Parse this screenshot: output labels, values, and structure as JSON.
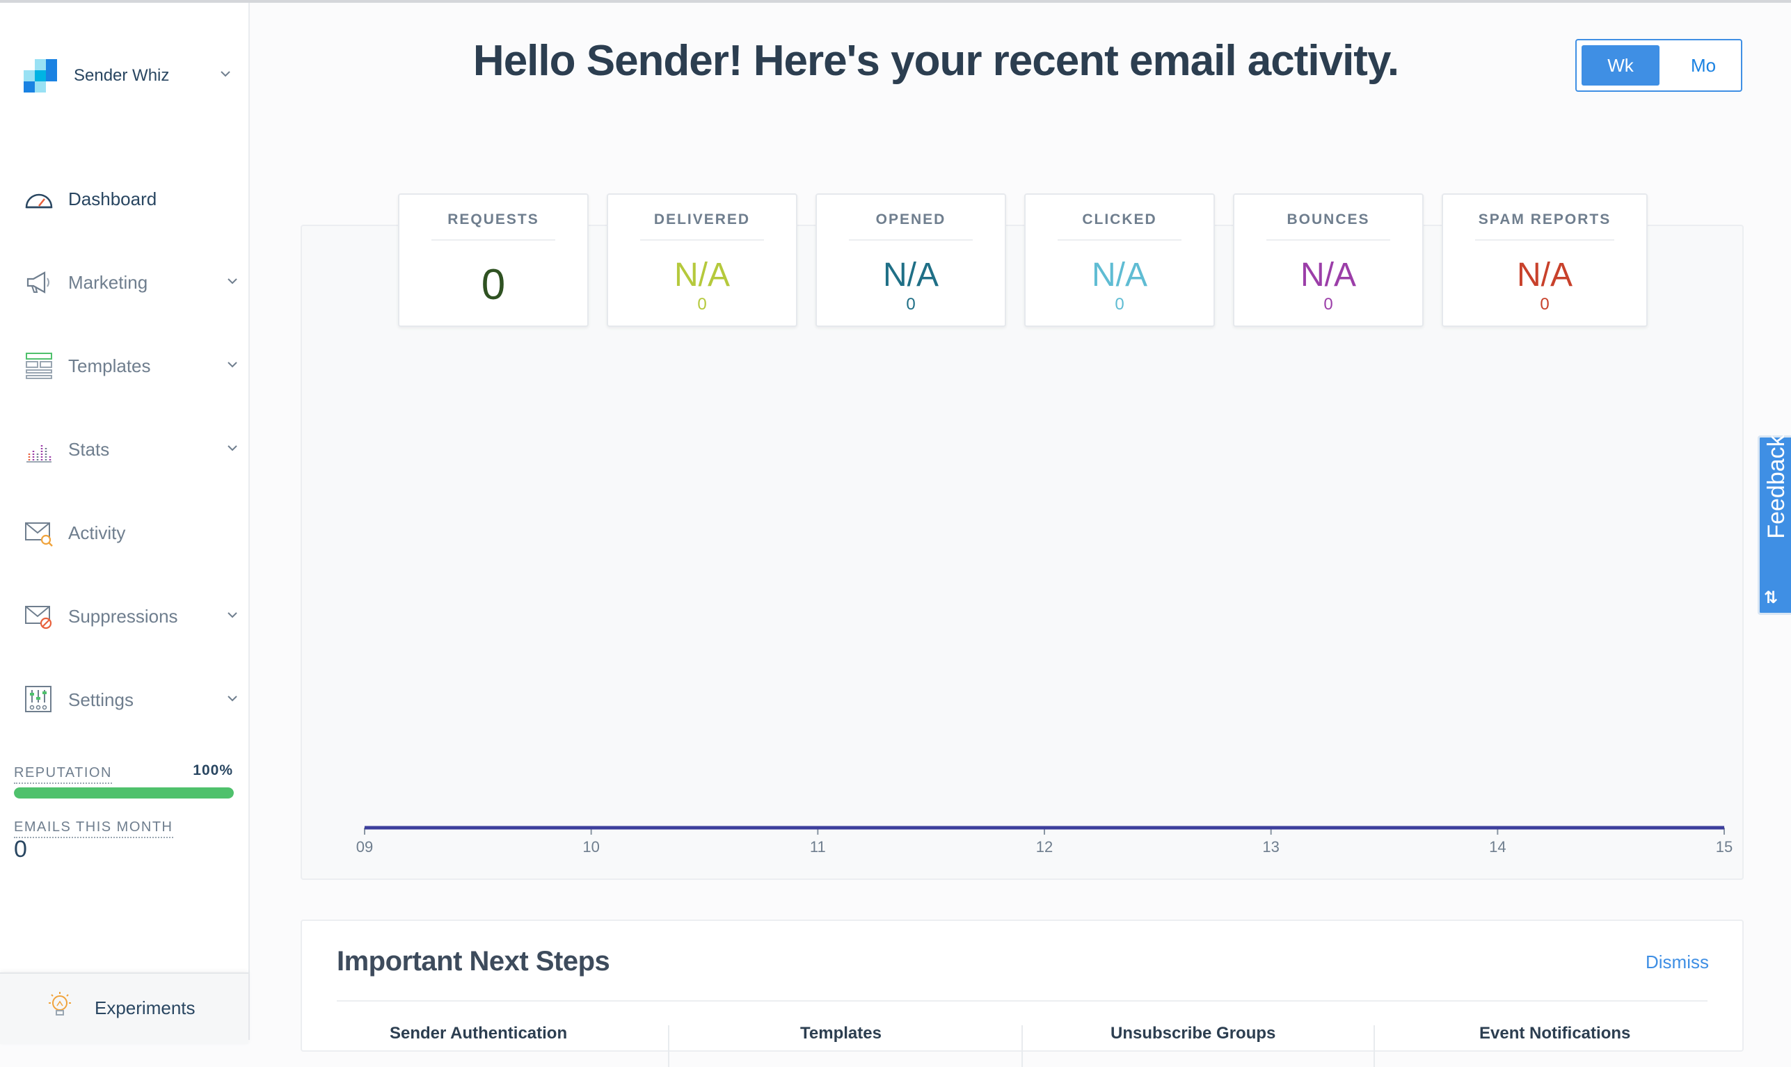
{
  "sidebar": {
    "account_name": "Sender Whiz",
    "items": [
      {
        "label": "Dashboard",
        "icon": "dashboard-gauge-icon",
        "has_chevron": false
      },
      {
        "label": "Marketing",
        "icon": "megaphone-icon",
        "has_chevron": true
      },
      {
        "label": "Templates",
        "icon": "templates-icon",
        "has_chevron": true
      },
      {
        "label": "Stats",
        "icon": "stats-bars-icon",
        "has_chevron": true
      },
      {
        "label": "Activity",
        "icon": "activity-envelope-icon",
        "has_chevron": false
      },
      {
        "label": "Suppressions",
        "icon": "suppressions-envelope-icon",
        "has_chevron": true
      },
      {
        "label": "Settings",
        "icon": "settings-sliders-icon",
        "has_chevron": true
      }
    ],
    "reputation_label": "REPUTATION",
    "reputation_value": "100%",
    "reputation_fraction": 1.0,
    "emails_label": "EMAILS THIS MONTH",
    "emails_value": "0",
    "experiments_label": "Experiments"
  },
  "header": {
    "title": "Hello Sender! Here's your recent email activity.",
    "toggle_week": "Wk",
    "toggle_month": "Mo",
    "selected": "Wk"
  },
  "metrics": [
    {
      "label": "REQUESTS",
      "value": "0",
      "sub": "",
      "color": "#2f5222"
    },
    {
      "label": "DELIVERED",
      "value": "N/A",
      "sub": "0",
      "color": "#b5c93c"
    },
    {
      "label": "OPENED",
      "value": "N/A",
      "sub": "0",
      "color": "#1f6f86"
    },
    {
      "label": "CLICKED",
      "value": "N/A",
      "sub": "0",
      "color": "#5fbcd3"
    },
    {
      "label": "BOUNCES",
      "value": "N/A",
      "sub": "0",
      "color": "#9b3ea8"
    },
    {
      "label": "SPAM REPORTS",
      "value": "N/A",
      "sub": "0",
      "color": "#c8412b"
    }
  ],
  "chart_data": {
    "type": "line",
    "x": [
      "09",
      "10",
      "11",
      "12",
      "13",
      "14",
      "15"
    ],
    "series": [
      {
        "values": [
          0,
          0,
          0,
          0,
          0,
          0,
          0
        ],
        "color": "#3d3f9c"
      }
    ],
    "title": "",
    "xlabel": "",
    "ylabel": "",
    "grid": false
  },
  "next_steps": {
    "title": "Important Next Steps",
    "dismiss": "Dismiss",
    "columns": [
      "Sender Authentication",
      "Templates",
      "Unsubscribe Groups",
      "Event Notifications"
    ]
  },
  "feedback": {
    "label": "Feedback",
    "glyph": "⇅"
  },
  "colors": {
    "accent": "#3f8fe4",
    "reputation": "#4fc16c",
    "text": "#294661"
  }
}
